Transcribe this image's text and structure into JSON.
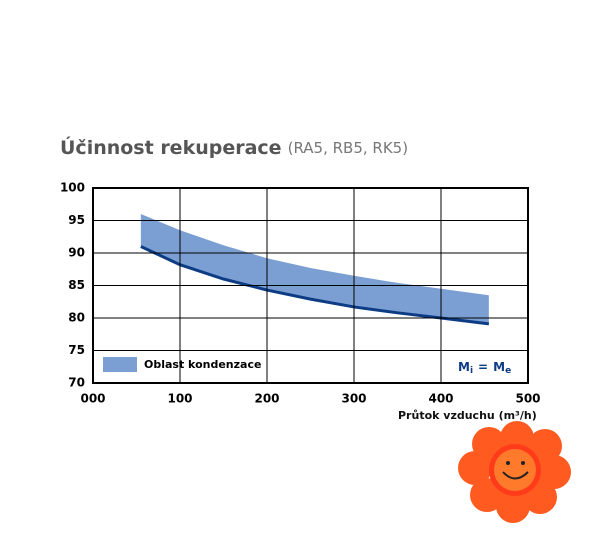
{
  "chart_data": {
    "type": "band",
    "title": "Účinnost rekuperace",
    "subtitle": "(RA5, RB5, RK5)",
    "x_label": "Průtok vzduchu (m³/h)",
    "x": [
      55,
      100,
      150,
      200,
      250,
      300,
      350,
      400,
      455
    ],
    "band": {
      "name": "Oblast kondenzace",
      "color": "#7b9fd3",
      "upper": [
        96,
        93.5,
        91.2,
        89.2,
        87.7,
        86.5,
        85.4,
        84.5,
        83.5
      ],
      "lower": [
        91,
        88.2,
        86,
        84.3,
        82.9,
        81.7,
        80.8,
        80,
        79.1
      ]
    },
    "line_color": "#0d3c85",
    "xlim": [
      0,
      500
    ],
    "xticks": [
      {
        "value": 0,
        "label": "000"
      },
      100,
      200,
      300,
      400,
      500
    ],
    "ylim": [
      70,
      100
    ],
    "yticks": [
      70,
      75,
      80,
      85,
      90,
      95,
      100
    ],
    "grid": true,
    "annotation": {
      "left": "M",
      "left_sub": "i",
      "eq": "=",
      "right": "M",
      "right_sub": "e"
    }
  }
}
